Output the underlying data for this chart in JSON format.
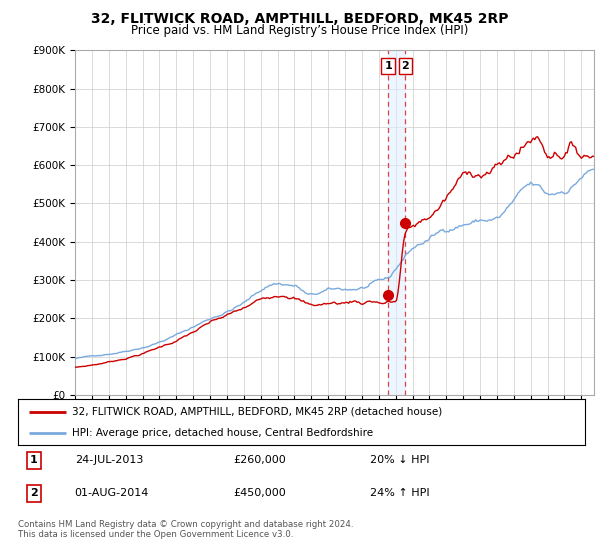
{
  "title": "32, FLITWICK ROAD, AMPTHILL, BEDFORD, MK45 2RP",
  "subtitle": "Price paid vs. HM Land Registry’s House Price Index (HPI)",
  "ylim": [
    0,
    900000
  ],
  "yticks": [
    0,
    100000,
    200000,
    300000,
    400000,
    500000,
    600000,
    700000,
    800000,
    900000
  ],
  "xlim_start": 1995.0,
  "xlim_end": 2025.75,
  "sale1_date": 2013.55,
  "sale1_price": 260000,
  "sale1_label": "1",
  "sale2_date": 2014.58,
  "sale2_price": 450000,
  "sale2_label": "2",
  "red_color": "#cc0000",
  "blue_color": "#7aaadd",
  "vline_color": "#dd4444",
  "vline_fill": "#e8d0d0",
  "legend1_text": "32, FLITWICK ROAD, AMPTHILL, BEDFORD, MK45 2RP (detached house)",
  "legend2_text": "HPI: Average price, detached house, Central Bedfordshire",
  "table_row1": [
    "1",
    "24-JUL-2013",
    "£260,000",
    "20% ↓ HPI"
  ],
  "table_row2": [
    "2",
    "01-AUG-2014",
    "£450,000",
    "24% ↑ HPI"
  ],
  "footer": "Contains HM Land Registry data © Crown copyright and database right 2024.\nThis data is licensed under the Open Government Licence v3.0."
}
